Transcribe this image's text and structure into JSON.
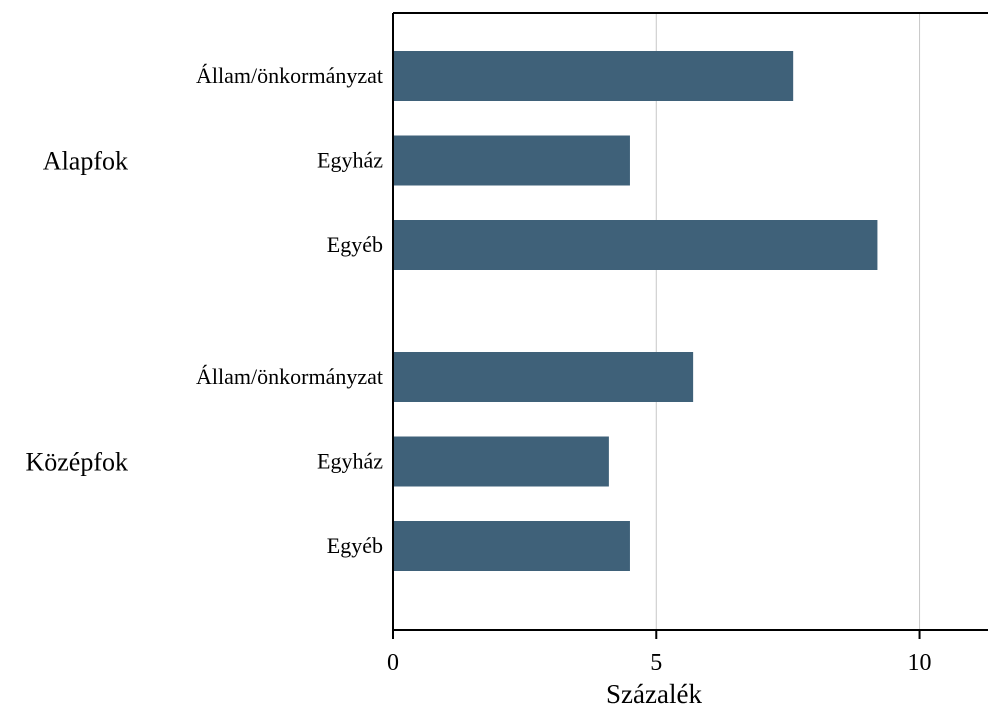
{
  "chart_data": {
    "type": "bar",
    "orientation": "horizontal",
    "xlabel": "Százalék",
    "xlim": [
      0,
      11.3
    ],
    "xticks": [
      0,
      5,
      10
    ],
    "grid": true,
    "bar_color": "#3f6179",
    "groups": [
      {
        "label": "Alapfok",
        "bars": [
          {
            "category": "Állam/önkormányzat",
            "value": 7.6
          },
          {
            "category": "Egyház",
            "value": 4.5
          },
          {
            "category": "Egyéb",
            "value": 9.2
          }
        ]
      },
      {
        "label": "Középfok",
        "bars": [
          {
            "category": "Állam/önkormányzat",
            "value": 5.7
          },
          {
            "category": "Egyház",
            "value": 4.1
          },
          {
            "category": "Egyéb",
            "value": 4.5
          }
        ]
      }
    ]
  }
}
